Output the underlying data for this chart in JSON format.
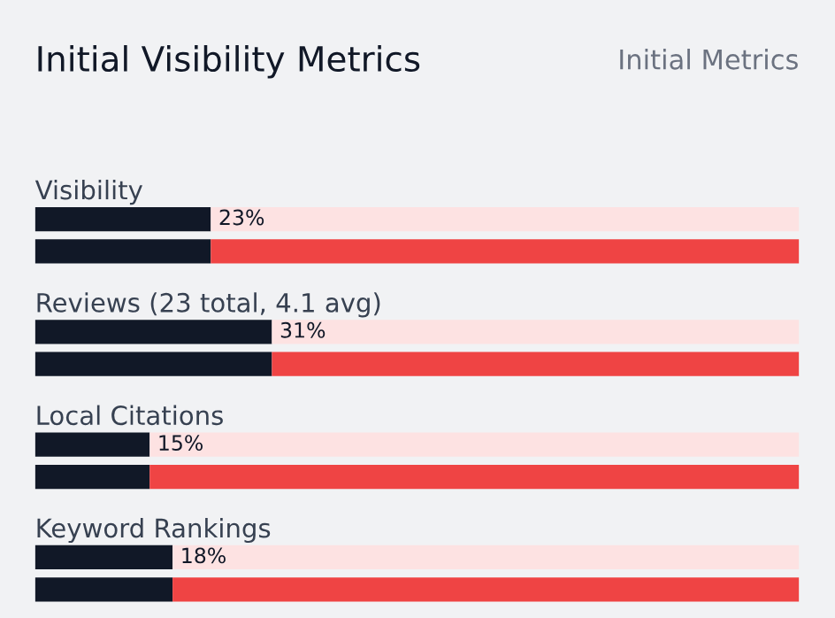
{
  "chart_data": {
    "type": "bar",
    "orientation": "horizontal",
    "stacked": true,
    "title": "Initial Visibility Metrics",
    "subtitle": "Initial Metrics",
    "categories": [
      "Visibility",
      null,
      "Reviews (23 total, 4.1 avg)",
      null,
      "Local Citations",
      null,
      "Keyword Rankings",
      null
    ],
    "xlim": [
      0,
      100
    ],
    "series": [
      {
        "color": "#111827",
        "values": [
          23,
          23,
          31,
          31,
          15,
          15,
          18,
          18
        ],
        "value_labels": [
          "23%",
          null,
          "31%",
          null,
          "15%",
          null,
          "18%",
          null
        ]
      },
      {
        "colors": [
          "#fde2e2",
          "#ef4444",
          "#fde2e2",
          "#ef4444",
          "#fde2e2",
          "#ef4444",
          "#fde2e2",
          "#ef4444"
        ],
        "values": [
          77,
          77,
          69,
          69,
          85,
          85,
          82,
          82
        ]
      }
    ]
  }
}
